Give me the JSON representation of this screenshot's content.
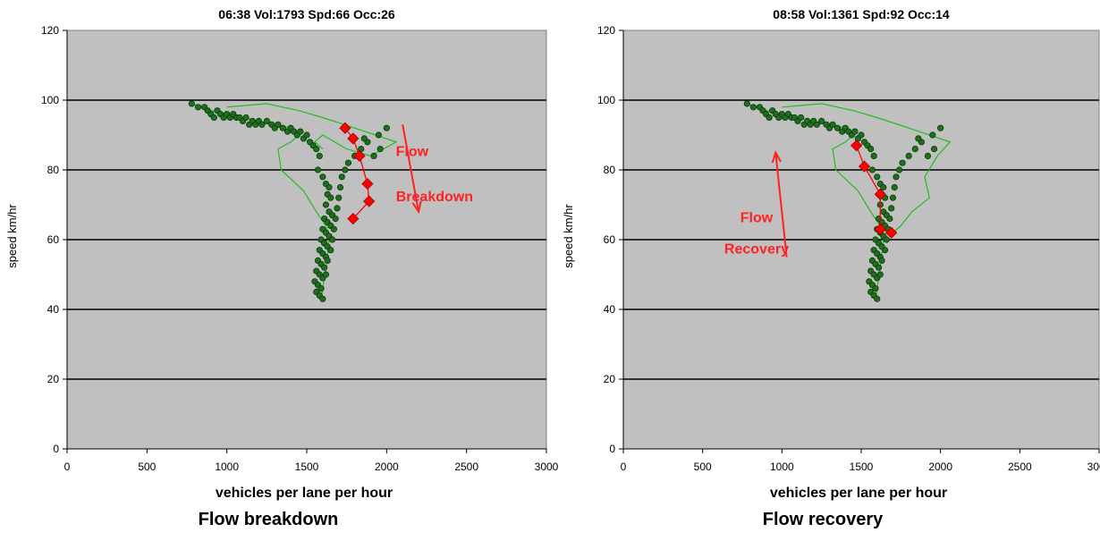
{
  "captions": [
    "Flow breakdown",
    "Flow recovery"
  ],
  "colors": {
    "plot_bg": "#c0c0c0",
    "point_fill": "#1f6f1f",
    "trail_line": "#22bb22",
    "highlight": "#ff0000",
    "annotation": "#ff2222"
  },
  "chart_data": [
    {
      "type": "scatter",
      "title": "06:38 Vol:1793 Spd:66 Occ:26",
      "xlabel": "vehicles per lane per hour",
      "ylabel": "speed km/hr",
      "xlim": [
        0,
        3000
      ],
      "ylim": [
        0,
        120
      ],
      "xticks": [
        0,
        500,
        1000,
        1500,
        2000,
        2500,
        3000
      ],
      "yticks": [
        0,
        20,
        40,
        60,
        80,
        100,
        120
      ],
      "grid": "horizontal",
      "series": [
        {
          "role": "history_points",
          "points": [
            [
              780,
              99
            ],
            [
              820,
              98
            ],
            [
              860,
              98
            ],
            [
              880,
              97
            ],
            [
              900,
              96
            ],
            [
              920,
              95
            ],
            [
              940,
              97
            ],
            [
              960,
              96
            ],
            [
              980,
              95
            ],
            [
              1000,
              96
            ],
            [
              1020,
              95
            ],
            [
              1040,
              96
            ],
            [
              1060,
              95
            ],
            [
              1080,
              95
            ],
            [
              1100,
              94
            ],
            [
              1120,
              95
            ],
            [
              1140,
              93
            ],
            [
              1160,
              94
            ],
            [
              1180,
              93
            ],
            [
              1200,
              94
            ],
            [
              1220,
              93
            ],
            [
              1250,
              94
            ],
            [
              1280,
              93
            ],
            [
              1300,
              92
            ],
            [
              1320,
              93
            ],
            [
              1350,
              92
            ],
            [
              1380,
              91
            ],
            [
              1400,
              92
            ],
            [
              1420,
              91
            ],
            [
              1440,
              90
            ],
            [
              1460,
              91
            ],
            [
              1480,
              89
            ],
            [
              1500,
              90
            ],
            [
              1520,
              88
            ],
            [
              1540,
              87
            ],
            [
              1560,
              86
            ],
            [
              1580,
              84
            ],
            [
              1570,
              80
            ],
            [
              1600,
              78
            ],
            [
              1620,
              76
            ],
            [
              1640,
              75
            ],
            [
              1630,
              73
            ],
            [
              1650,
              72
            ],
            [
              1620,
              70
            ],
            [
              1640,
              68
            ],
            [
              1660,
              67
            ],
            [
              1610,
              66
            ],
            [
              1630,
              65
            ],
            [
              1650,
              64
            ],
            [
              1600,
              63
            ],
            [
              1620,
              62
            ],
            [
              1640,
              61
            ],
            [
              1590,
              60
            ],
            [
              1610,
              59
            ],
            [
              1630,
              58
            ],
            [
              1580,
              57
            ],
            [
              1600,
              56
            ],
            [
              1620,
              55
            ],
            [
              1570,
              54
            ],
            [
              1590,
              53
            ],
            [
              1610,
              52
            ],
            [
              1560,
              51
            ],
            [
              1580,
              50
            ],
            [
              1600,
              49
            ],
            [
              1550,
              48
            ],
            [
              1570,
              47
            ],
            [
              1590,
              46
            ],
            [
              1560,
              45
            ],
            [
              1580,
              44
            ],
            [
              1600,
              43
            ],
            [
              1620,
              50
            ],
            [
              1630,
              54
            ],
            [
              1650,
              57
            ],
            [
              1660,
              60
            ],
            [
              1670,
              63
            ],
            [
              1680,
              66
            ],
            [
              1690,
              69
            ],
            [
              1700,
              72
            ],
            [
              1710,
              75
            ],
            [
              1720,
              78
            ],
            [
              1740,
              80
            ],
            [
              1760,
              82
            ],
            [
              1800,
              84
            ],
            [
              1840,
              86
            ],
            [
              1880,
              88
            ],
            [
              1950,
              90
            ],
            [
              2000,
              92
            ],
            [
              1960,
              86
            ],
            [
              1920,
              84
            ],
            [
              1860,
              89
            ]
          ]
        },
        {
          "role": "trail_line",
          "points": [
            [
              780,
              99
            ],
            [
              900,
              97
            ],
            [
              1000,
              96
            ],
            [
              1100,
              95
            ],
            [
              1200,
              94
            ],
            [
              1300,
              93
            ],
            [
              1400,
              92
            ],
            [
              1450,
              90
            ],
            [
              1400,
              88
            ],
            [
              1320,
              86
            ],
            [
              1340,
              80
            ],
            [
              1480,
              74
            ],
            [
              1560,
              68
            ],
            [
              1620,
              64
            ],
            [
              1640,
              60
            ],
            [
              1620,
              52
            ],
            [
              1600,
              46
            ],
            [
              1590,
              43
            ]
          ]
        },
        {
          "role": "trail_line",
          "points": [
            [
              1000,
              98
            ],
            [
              1250,
              99
            ],
            [
              1450,
              97
            ],
            [
              1600,
              95
            ],
            [
              1800,
              92
            ],
            [
              2060,
              88
            ],
            [
              1900,
              84
            ],
            [
              1750,
              86
            ],
            [
              1600,
              90
            ],
            [
              1550,
              88
            ],
            [
              1600,
              86
            ]
          ]
        },
        {
          "role": "current_run",
          "points": [
            [
              1740,
              92
            ],
            [
              1790,
              89
            ],
            [
              1830,
              84
            ],
            [
              1880,
              76
            ],
            [
              1890,
              71
            ],
            [
              1790,
              66
            ]
          ]
        }
      ],
      "annotation": {
        "lines": [
          "Flow",
          "Breakdown"
        ],
        "arrow": "down"
      }
    },
    {
      "type": "scatter",
      "title": "08:58 Vol:1361 Spd:92 Occ:14",
      "xlabel": "vehicles per lane per hour",
      "ylabel": "speed km/hr",
      "xlim": [
        0,
        3000
      ],
      "ylim": [
        0,
        120
      ],
      "xticks": [
        0,
        500,
        1000,
        1500,
        2000,
        2500,
        3000
      ],
      "yticks": [
        0,
        20,
        40,
        60,
        80,
        100,
        120
      ],
      "grid": "horizontal",
      "series": [
        {
          "role": "history_points",
          "points": [
            [
              780,
              99
            ],
            [
              820,
              98
            ],
            [
              860,
              98
            ],
            [
              880,
              97
            ],
            [
              900,
              96
            ],
            [
              920,
              95
            ],
            [
              940,
              97
            ],
            [
              960,
              96
            ],
            [
              980,
              95
            ],
            [
              1000,
              96
            ],
            [
              1020,
              95
            ],
            [
              1040,
              96
            ],
            [
              1060,
              95
            ],
            [
              1080,
              95
            ],
            [
              1100,
              94
            ],
            [
              1120,
              95
            ],
            [
              1140,
              93
            ],
            [
              1160,
              94
            ],
            [
              1180,
              93
            ],
            [
              1200,
              94
            ],
            [
              1220,
              93
            ],
            [
              1250,
              94
            ],
            [
              1280,
              93
            ],
            [
              1300,
              92
            ],
            [
              1320,
              93
            ],
            [
              1350,
              92
            ],
            [
              1380,
              91
            ],
            [
              1400,
              92
            ],
            [
              1420,
              91
            ],
            [
              1440,
              90
            ],
            [
              1460,
              91
            ],
            [
              1480,
              89
            ],
            [
              1500,
              90
            ],
            [
              1520,
              88
            ],
            [
              1540,
              87
            ],
            [
              1560,
              86
            ],
            [
              1580,
              84
            ],
            [
              1570,
              80
            ],
            [
              1600,
              78
            ],
            [
              1620,
              76
            ],
            [
              1640,
              75
            ],
            [
              1630,
              73
            ],
            [
              1650,
              72
            ],
            [
              1620,
              70
            ],
            [
              1640,
              68
            ],
            [
              1660,
              67
            ],
            [
              1610,
              66
            ],
            [
              1630,
              65
            ],
            [
              1650,
              64
            ],
            [
              1600,
              63
            ],
            [
              1620,
              62
            ],
            [
              1640,
              61
            ],
            [
              1590,
              60
            ],
            [
              1610,
              59
            ],
            [
              1630,
              58
            ],
            [
              1580,
              57
            ],
            [
              1600,
              56
            ],
            [
              1620,
              55
            ],
            [
              1570,
              54
            ],
            [
              1590,
              53
            ],
            [
              1610,
              52
            ],
            [
              1560,
              51
            ],
            [
              1580,
              50
            ],
            [
              1600,
              49
            ],
            [
              1550,
              48
            ],
            [
              1570,
              47
            ],
            [
              1590,
              46
            ],
            [
              1560,
              45
            ],
            [
              1580,
              44
            ],
            [
              1600,
              43
            ],
            [
              1620,
              50
            ],
            [
              1630,
              54
            ],
            [
              1650,
              57
            ],
            [
              1660,
              60
            ],
            [
              1670,
              63
            ],
            [
              1680,
              66
            ],
            [
              1690,
              69
            ],
            [
              1700,
              72
            ],
            [
              1710,
              75
            ],
            [
              1720,
              78
            ],
            [
              1740,
              80
            ],
            [
              1760,
              82
            ],
            [
              1800,
              84
            ],
            [
              1840,
              86
            ],
            [
              1880,
              88
            ],
            [
              1950,
              90
            ],
            [
              2000,
              92
            ],
            [
              1960,
              86
            ],
            [
              1920,
              84
            ],
            [
              1860,
              89
            ]
          ]
        },
        {
          "role": "trail_line",
          "points": [
            [
              780,
              99
            ],
            [
              900,
              97
            ],
            [
              1000,
              96
            ],
            [
              1100,
              95
            ],
            [
              1200,
              94
            ],
            [
              1300,
              93
            ],
            [
              1400,
              92
            ],
            [
              1450,
              90
            ],
            [
              1400,
              88
            ],
            [
              1320,
              86
            ],
            [
              1340,
              80
            ],
            [
              1480,
              74
            ],
            [
              1560,
              68
            ],
            [
              1620,
              64
            ],
            [
              1640,
              60
            ],
            [
              1620,
              52
            ],
            [
              1600,
              46
            ],
            [
              1590,
              43
            ]
          ]
        },
        {
          "role": "trail_line",
          "points": [
            [
              1000,
              98
            ],
            [
              1250,
              99
            ],
            [
              1450,
              97
            ],
            [
              1600,
              95
            ],
            [
              1800,
              92
            ],
            [
              2060,
              88
            ],
            [
              1980,
              84
            ],
            [
              1900,
              78
            ],
            [
              1930,
              72
            ],
            [
              1820,
              68
            ],
            [
              1750,
              64
            ],
            [
              1700,
              62
            ]
          ]
        },
        {
          "role": "current_run",
          "points": [
            [
              1690,
              62
            ],
            [
              1620,
              63
            ],
            [
              1620,
              73
            ],
            [
              1520,
              81
            ],
            [
              1470,
              87
            ]
          ]
        }
      ],
      "annotation": {
        "lines": [
          "Flow",
          "Recovery"
        ],
        "arrow": "up"
      }
    }
  ]
}
